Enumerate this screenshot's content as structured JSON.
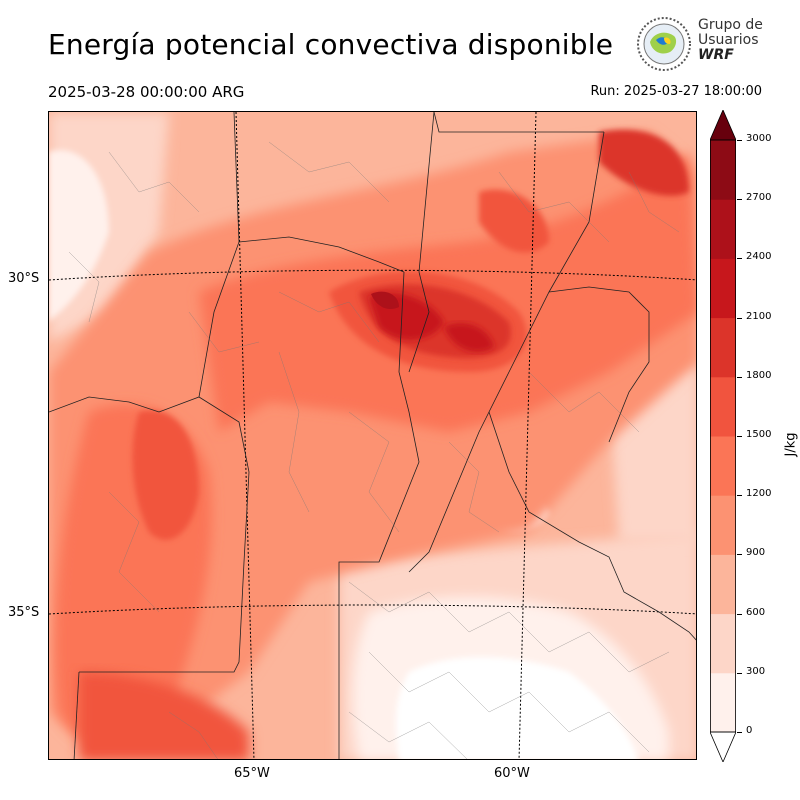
{
  "header": {
    "title": "Energía potencial convectiva disponible",
    "valid_time": "2025-03-28 00:00:00 ARG",
    "run_time": "Run: 2025-03-27 18:00:00"
  },
  "logo": {
    "line1": "Grupo de",
    "line2": "Usuarios",
    "line3": "WRF"
  },
  "map": {
    "lat_labels": [
      "30°S",
      "35°S"
    ],
    "lon_labels": [
      "65°W",
      "60°W"
    ]
  },
  "colorbar": {
    "unit": "J/kg",
    "ticks": [
      "3000",
      "2700",
      "2400",
      "2100",
      "1800",
      "1500",
      "1200",
      "900",
      "600",
      "300",
      "0"
    ],
    "colors": [
      "#fff1ec",
      "#fdd6c8",
      "#fcb59b",
      "#fc9272",
      "#fb7556",
      "#f1543e",
      "#dc342a",
      "#c7171c",
      "#ad111a",
      "#8d0b15",
      "#67000d"
    ]
  }
}
